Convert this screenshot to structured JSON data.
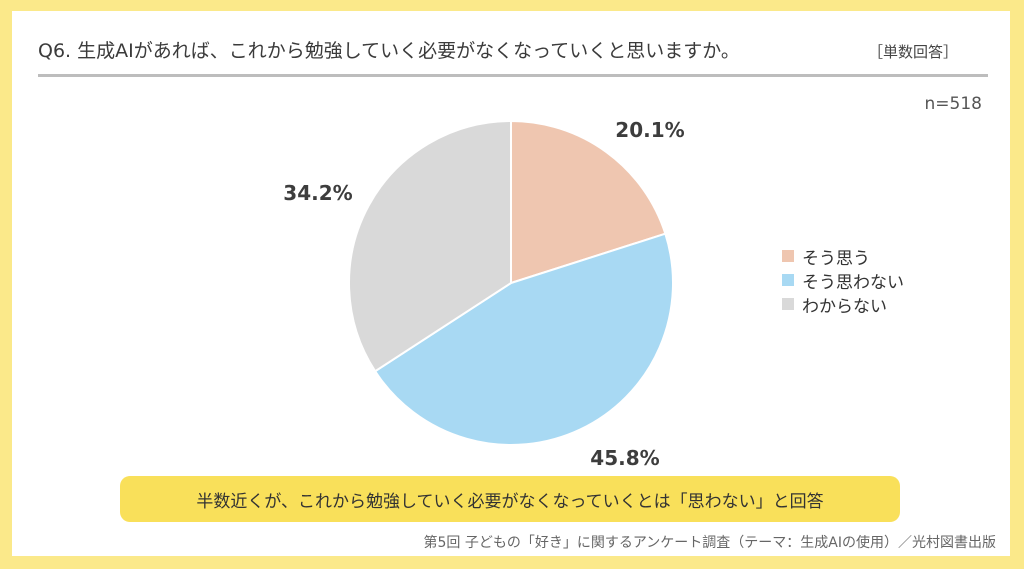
{
  "header": {
    "title": "Q6. 生成AIがあれば、これから勉強していく必要がなくなっていくと思いますか。",
    "note": "［単数回答］"
  },
  "sample_size": "n=518",
  "chart_data": {
    "type": "pie",
    "title": "",
    "slices": [
      {
        "label": "そう思う",
        "value": 20.1,
        "value_label": "20.1%",
        "color": "#efc6b0"
      },
      {
        "label": "そう思わない",
        "value": 45.8,
        "value_label": "45.8%",
        "color": "#a8d9f3"
      },
      {
        "label": "わからない",
        "value": 34.2,
        "value_label": "34.2%",
        "color": "#d9d9d9"
      }
    ],
    "start_angle_deg": 0,
    "direction": "clockwise",
    "legend_position": "right"
  },
  "callout": "半数近くが、これから勉強していく必要がなくなっていくとは「思わない」と回答",
  "source": "第5回 子どもの「好き」に関するアンケート調査（テーマ：生成AIの使用）／光村図書出版"
}
